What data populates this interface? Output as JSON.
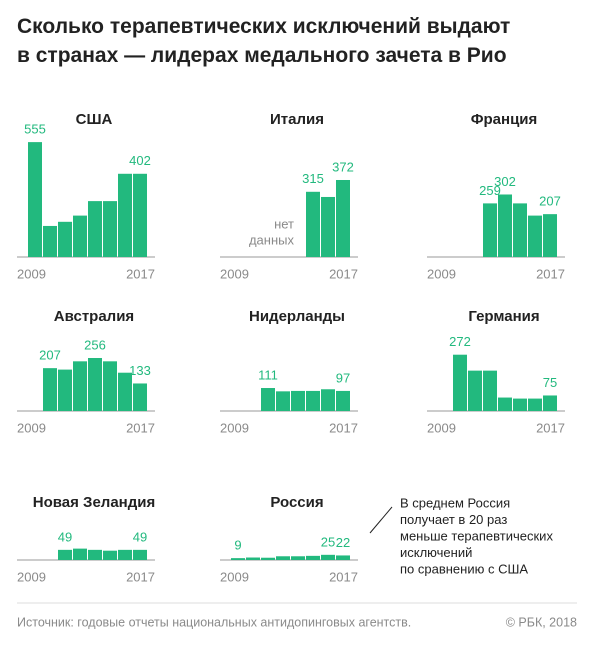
{
  "title": [
    "Сколько терапевтических исключений выдают",
    "в странах — лидерах медального зачета в Рио"
  ],
  "annotation": [
    "В среднем Россия",
    "получает в 20 раз",
    "меньше терапевтических",
    "исключений",
    "по сравнению с США"
  ],
  "source": "Источник: годовые отчеты национальных антидопинговых агентств.",
  "copyright": "© РБК, 2018",
  "chart_data": [
    {
      "type": "bar",
      "title": "США",
      "color": "#22b97e",
      "categories": [
        "2009",
        null,
        null,
        null,
        null,
        null,
        null,
        "2017"
      ],
      "values": [
        555,
        150,
        170,
        200,
        270,
        270,
        402,
        402
      ],
      "value_labels": [
        "555",
        null,
        null,
        null,
        null,
        null,
        null,
        "402"
      ]
    },
    {
      "type": "bar",
      "title": "Италия",
      "color": "#22b97e",
      "categories": [
        "2009",
        null,
        null,
        null,
        null,
        null,
        null,
        "2017"
      ],
      "values": [
        null,
        null,
        null,
        null,
        null,
        315,
        290,
        372
      ],
      "value_labels": [
        null,
        null,
        null,
        null,
        null,
        "315",
        null,
        "372"
      ],
      "note": [
        "нет",
        "данных"
      ]
    },
    {
      "type": "bar",
      "title": "Франция",
      "color": "#22b97e",
      "categories": [
        "2009",
        null,
        null,
        null,
        null,
        null,
        null,
        "2017"
      ],
      "values": [
        null,
        null,
        null,
        259,
        302,
        259,
        200,
        207
      ],
      "value_labels": [
        null,
        null,
        null,
        "259",
        "302",
        null,
        null,
        "207"
      ]
    },
    {
      "type": "bar",
      "title": "Австралия",
      "color": "#22b97e",
      "categories": [
        "2009",
        null,
        null,
        null,
        null,
        null,
        null,
        "2017"
      ],
      "values": [
        null,
        207,
        200,
        240,
        256,
        240,
        185,
        133
      ],
      "value_labels": [
        null,
        "207",
        null,
        null,
        "256",
        null,
        null,
        "133"
      ]
    },
    {
      "type": "bar",
      "title": "Нидерланды",
      "color": "#22b97e",
      "categories": [
        "2009",
        null,
        null,
        null,
        null,
        null,
        null,
        "2017"
      ],
      "values": [
        null,
        null,
        111,
        95,
        97,
        97,
        105,
        97
      ],
      "value_labels": [
        null,
        null,
        "111",
        null,
        null,
        null,
        null,
        "97"
      ]
    },
    {
      "type": "bar",
      "title": "Германия",
      "color": "#22b97e",
      "categories": [
        "2009",
        null,
        null,
        null,
        null,
        null,
        null,
        "2017"
      ],
      "values": [
        null,
        272,
        195,
        195,
        65,
        60,
        60,
        75
      ],
      "value_labels": [
        null,
        "272",
        null,
        null,
        null,
        null,
        null,
        "75"
      ]
    },
    {
      "type": "bar",
      "title": "Новая Зеландия",
      "color": "#22b97e",
      "categories": [
        "2009",
        null,
        null,
        null,
        null,
        null,
        null,
        "2017"
      ],
      "values": [
        null,
        null,
        49,
        55,
        49,
        45,
        49,
        49
      ],
      "value_labels": [
        null,
        null,
        "49",
        null,
        null,
        null,
        null,
        "49"
      ]
    },
    {
      "type": "bar",
      "title": "Россия",
      "color": "#22b97e",
      "categories": [
        "2009",
        null,
        null,
        null,
        null,
        null,
        null,
        "2017"
      ],
      "values": [
        9,
        12,
        11,
        18,
        18,
        20,
        25,
        22
      ],
      "value_labels": [
        "9",
        null,
        null,
        null,
        null,
        null,
        "25",
        "22"
      ]
    }
  ]
}
